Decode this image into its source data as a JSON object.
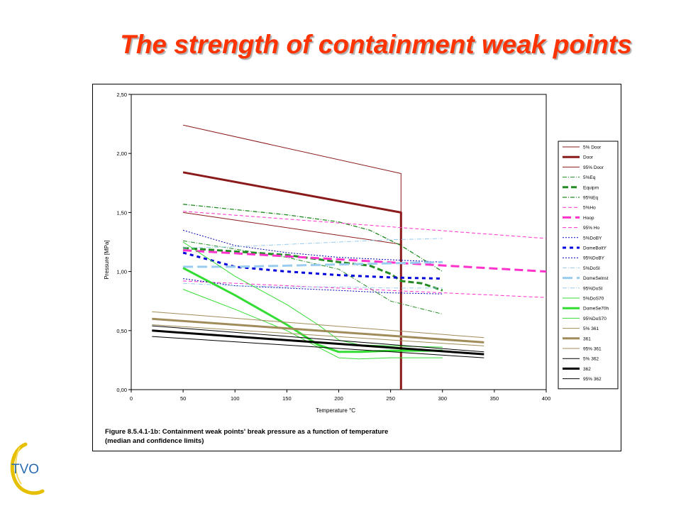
{
  "slide": {
    "title": "The strength of containment weak points",
    "caption_line1": "Figure 8.5.4.1-1b: Containment weak points' break pressure as a function of temperature",
    "caption_line2": "(median and confidence limits)",
    "logo_text": "TVO"
  },
  "chart_data": {
    "type": "line",
    "title": "",
    "xlabel": "Temperature °C",
    "ylabel": "Pressure [MPa]",
    "xlim": [
      0,
      400
    ],
    "ylim": [
      0,
      2.5
    ],
    "xticks": [
      0,
      50,
      100,
      150,
      200,
      250,
      300,
      350,
      400
    ],
    "xtick_labels": [
      "0",
      "50",
      "100",
      "150",
      "200",
      "250",
      "300",
      "350",
      "400"
    ],
    "yticks": [
      0,
      0.5,
      1.0,
      1.5,
      2.0,
      2.5
    ],
    "ytick_labels": [
      "0,00",
      "0,50",
      "1,00",
      "1,50",
      "2,00",
      "2,50"
    ],
    "grid": false,
    "legend_position": "right",
    "series": [
      {
        "name": "5% Door",
        "color": "#8b1a1a",
        "width": 1,
        "dash": "",
        "x": [
          50,
          260,
          260
        ],
        "y": [
          2.24,
          1.83,
          0
        ]
      },
      {
        "name": "Door",
        "color": "#8b1a1a",
        "width": 3,
        "dash": "",
        "x": [
          50,
          260,
          260
        ],
        "y": [
          1.84,
          1.5,
          0
        ]
      },
      {
        "name": "95% Door",
        "color": "#8b1a1a",
        "width": 1,
        "dash": "",
        "x": [
          50,
          260
        ],
        "y": [
          1.5,
          1.23
        ]
      },
      {
        "name": "5%Eq",
        "color": "#228b22",
        "width": 1,
        "dash": "6,2,1,2",
        "x": [
          50,
          150,
          200,
          250,
          300
        ],
        "y": [
          1.26,
          1.12,
          1.02,
          0.75,
          0.64
        ]
      },
      {
        "name": "Equipm",
        "color": "#228b22",
        "width": 3,
        "dash": "8,4",
        "x": [
          50,
          150,
          200,
          230,
          250,
          260,
          280,
          300
        ],
        "y": [
          1.2,
          1.14,
          1.08,
          1.05,
          0.98,
          0.92,
          0.9,
          0.84
        ]
      },
      {
        "name": "95%Eq",
        "color": "#228b22",
        "width": 1.3,
        "dash": "6,2,1,2",
        "x": [
          50,
          150,
          200,
          230,
          260,
          300
        ],
        "y": [
          1.57,
          1.48,
          1.42,
          1.35,
          1.22,
          1.0
        ]
      },
      {
        "name": "5%Ho",
        "color": "#ff33cc",
        "width": 1,
        "dash": "5,3",
        "x": [
          50,
          400
        ],
        "y": [
          0.92,
          0.78
        ]
      },
      {
        "name": "Hoop",
        "color": "#ff33cc",
        "width": 3,
        "dash": "12,6",
        "x": [
          50,
          400
        ],
        "y": [
          1.18,
          1.0
        ]
      },
      {
        "name": "95% Ho",
        "color": "#ff33cc",
        "width": 1,
        "dash": "5,3",
        "x": [
          50,
          400
        ],
        "y": [
          1.51,
          1.28
        ]
      },
      {
        "name": "5%DoBY",
        "color": "#0000aa",
        "width": 1,
        "dash": "2,2",
        "x": [
          50,
          100,
          150,
          200,
          250,
          300
        ],
        "y": [
          0.94,
          0.88,
          0.86,
          0.84,
          0.82,
          0.81
        ]
      },
      {
        "name": "DomeBoltY",
        "color": "#0000dd",
        "width": 3,
        "dash": "5,5",
        "x": [
          50,
          100,
          150,
          200,
          250,
          300
        ],
        "y": [
          1.16,
          1.04,
          1.0,
          0.97,
          0.95,
          0.94
        ]
      },
      {
        "name": "95%DoBY",
        "color": "#0000aa",
        "width": 1,
        "dash": "2,2",
        "x": [
          50,
          100,
          150,
          200,
          250,
          300
        ],
        "y": [
          1.35,
          1.22,
          1.16,
          1.12,
          1.1,
          1.08
        ]
      },
      {
        "name": "5%DoSI",
        "color": "#99ccee",
        "width": 1,
        "dash": "6,2,1,2",
        "x": [
          50,
          100,
          150,
          200,
          250,
          300
        ],
        "y": [
          0.9,
          0.88,
          0.87,
          0.87,
          0.86,
          0.86
        ]
      },
      {
        "name": "DomeSelnst",
        "color": "#99ccee",
        "width": 3,
        "dash": "14,6",
        "x": [
          50,
          100,
          150,
          200,
          250,
          300
        ],
        "y": [
          1.04,
          1.04,
          1.05,
          1.06,
          1.07,
          1.08
        ]
      },
      {
        "name": "95%DoSI",
        "color": "#99ccee",
        "width": 1,
        "dash": "6,2,1,2",
        "x": [
          50,
          100,
          150,
          200,
          250,
          300
        ],
        "y": [
          1.2,
          1.21,
          1.23,
          1.25,
          1.27,
          1.28
        ]
      },
      {
        "name": "5%DoS70",
        "color": "#33dd33",
        "width": 1,
        "dash": "",
        "x": [
          50,
          100,
          150,
          180,
          200,
          220,
          250,
          300
        ],
        "y": [
          0.85,
          0.68,
          0.5,
          0.36,
          0.27,
          0.26,
          0.27,
          0.27
        ]
      },
      {
        "name": "DomeSe70h",
        "color": "#33dd33",
        "width": 3,
        "dash": "",
        "x": [
          50,
          100,
          150,
          180,
          200,
          220,
          250,
          300
        ],
        "y": [
          1.03,
          0.8,
          0.55,
          0.38,
          0.32,
          0.32,
          0.33,
          0.33
        ]
      },
      {
        "name": "95%DoS70",
        "color": "#33dd33",
        "width": 1,
        "dash": "",
        "x": [
          50,
          100,
          150,
          180,
          200,
          220,
          250,
          300
        ],
        "y": [
          1.25,
          0.96,
          0.72,
          0.55,
          0.42,
          0.38,
          0.37,
          0.36
        ]
      },
      {
        "name": "5% 361",
        "color": "#a08c5a",
        "width": 1,
        "dash": "",
        "x": [
          20,
          340
        ],
        "y": [
          0.55,
          0.37
        ]
      },
      {
        "name": "361",
        "color": "#a08c5a",
        "width": 3,
        "dash": "",
        "x": [
          20,
          340
        ],
        "y": [
          0.6,
          0.4
        ]
      },
      {
        "name": "95% 361",
        "color": "#a08c5a",
        "width": 1,
        "dash": "",
        "x": [
          20,
          340
        ],
        "y": [
          0.66,
          0.44
        ]
      },
      {
        "name": "5% 362",
        "color": "#000000",
        "width": 1,
        "dash": "",
        "x": [
          20,
          340
        ],
        "y": [
          0.45,
          0.27
        ]
      },
      {
        "name": "362",
        "color": "#000000",
        "width": 3,
        "dash": "",
        "x": [
          20,
          340
        ],
        "y": [
          0.5,
          0.3
        ]
      },
      {
        "name": "95% 362",
        "color": "#000000",
        "width": 1,
        "dash": "",
        "x": [
          20,
          340
        ],
        "y": [
          0.54,
          0.32
        ]
      }
    ]
  }
}
